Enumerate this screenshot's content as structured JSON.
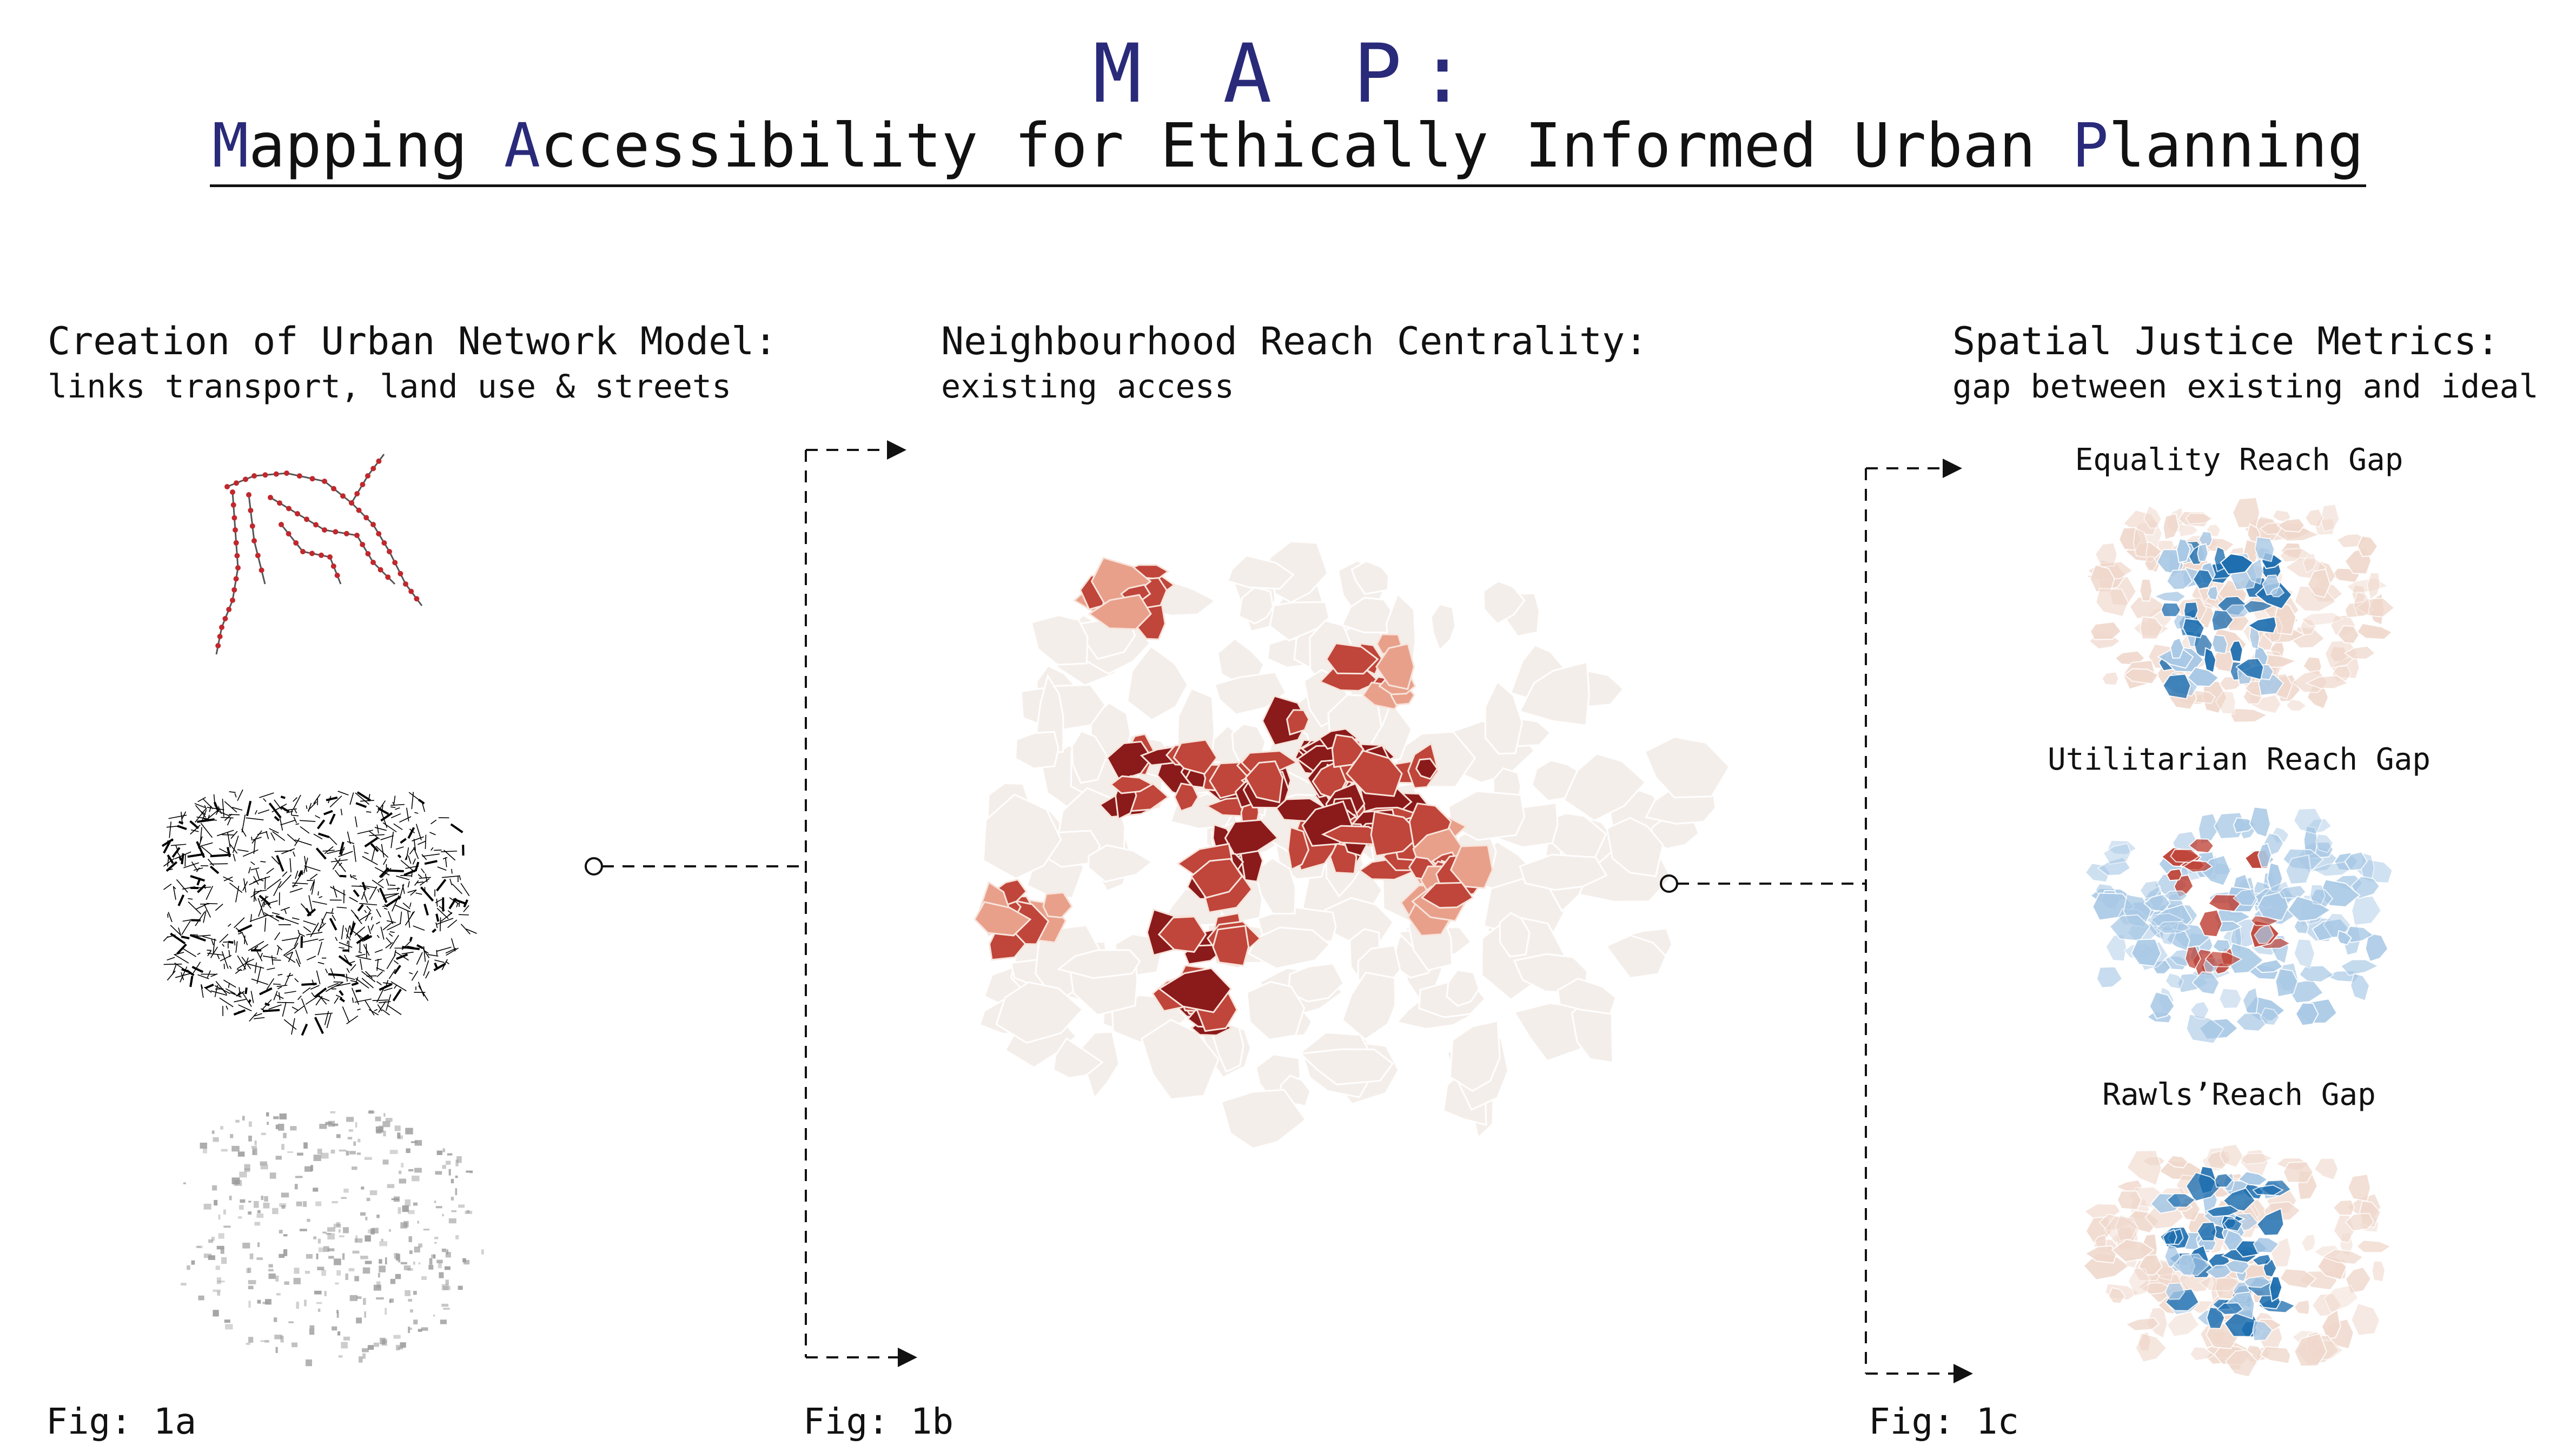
{
  "title": {
    "acronym": "M A P:",
    "subtitle_parts": [
      {
        "text": "M",
        "accent": true
      },
      {
        "text": "apping ",
        "accent": false
      },
      {
        "text": "A",
        "accent": true
      },
      {
        "text": "ccessibility for Ethically Informed Urban ",
        "accent": false
      },
      {
        "text": "P",
        "accent": true
      },
      {
        "text": "lanning",
        "accent": false
      }
    ]
  },
  "panels": {
    "a": {
      "heading": "Creation of Urban Network Model:",
      "subheading": "links transport, land use & streets",
      "figure_label": "Fig: 1a",
      "layers": [
        "transit-network-map",
        "street-network-map",
        "land-use-map"
      ]
    },
    "b": {
      "heading": "Neighbourhood Reach Centrality:",
      "subheading": "existing access",
      "figure_label": "Fig: 1b"
    },
    "c": {
      "heading": "Spatial Justice Metrics:",
      "subheading": "gap between existing and ideal",
      "figure_label": "Fig: 1c",
      "maps": [
        {
          "title": "Equality Reach Gap"
        },
        {
          "title": "Utilitarian Reach Gap"
        },
        {
          "title": "Rawls’Reach Gap"
        }
      ]
    }
  },
  "colors": {
    "accent": "#2a2a7a",
    "reach_dark": "#8b1a1a",
    "reach_mid": "#c0453a",
    "reach_light": "#e8a08a",
    "reach_faint": "#f4eeea",
    "gap_blue": "#1f6fb0",
    "gap_blue_light": "#a9c9e6",
    "gap_red_light": "#f0d8cc",
    "transit_red": "#c0282d"
  }
}
